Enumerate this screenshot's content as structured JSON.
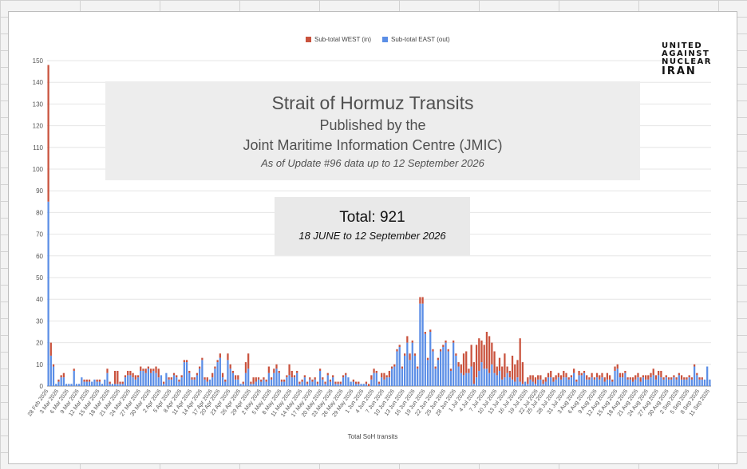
{
  "title_box": {
    "line1": "Strait of Hormuz Transits",
    "line2": "Published by the",
    "line3": "Joint Maritime Information Centre (JMIC)",
    "line4": "As of Update #96 data up to 12 September 2026"
  },
  "total_box": {
    "line1": "Total: 921",
    "line2": "18 JUNE to 12 September 2026"
  },
  "logo": {
    "line1": "UNITED",
    "line2": "AGAINST",
    "line3": "NUCLEAR",
    "line4": "IRAN"
  },
  "colors": {
    "west": "#c9523d",
    "east": "#5b8ee6",
    "axis_text": "#555555",
    "grid": "#e6e6e6"
  },
  "chart_data": {
    "type": "bar",
    "stacked": true,
    "xlabel": "Total SoH transits",
    "ylabel": "",
    "ylim": [
      0,
      150
    ],
    "yticks": [
      0,
      10,
      20,
      30,
      40,
      50,
      60,
      70,
      80,
      90,
      100,
      110,
      120,
      130,
      140,
      150
    ],
    "legend": {
      "placement": "top-center"
    },
    "xtick_labels": [
      "28 Feb 2026",
      "3 Mar 2026",
      "6 Mar 2026",
      "9 Mar 2026",
      "12 Mar 2026",
      "15 Mar 2026",
      "18 Mar 2026",
      "21 Mar 2026",
      "24 Mar 2026",
      "27 Mar 2026",
      "30 Mar 2026",
      "2 Apr 2026",
      "5 Apr 2026",
      "8 Apr 2026",
      "11 Apr 2026",
      "14 Apr 2026",
      "17 Apr 2026",
      "20 Apr 2026",
      "23 Apr 2026",
      "26 Apr 2026",
      "29 Apr 2026",
      "2 May 2026",
      "5 May 2026",
      "8 May 2026",
      "11 May 2026",
      "14 May 2026",
      "17 May 2026",
      "20 May 2026",
      "23 May 2026",
      "26 May 2026",
      "29 May 2026",
      "1 Jun 2026",
      "4 Jun 2026",
      "7 Jun 2026",
      "10 Jun 2026",
      "13 Jun 2026",
      "16 Jun 2026",
      "19 Jun 2026",
      "22 Jun 2026",
      "25 Jun 2026",
      "28 Jun 2026",
      "1 Jul 2026",
      "4 Jul 2026",
      "7 Jul 2026",
      "10 Jul 2026",
      "13 Jul 2026",
      "16 Jul 2026",
      "19 Jul 2026",
      "22 Jul 2026",
      "25 Jul 2026",
      "28 Jul 2026",
      "31 Jul 2026",
      "3 Aug 2026",
      "6 Aug 2026",
      "9 Aug 2026",
      "12 Aug 2026",
      "15 Aug 2026",
      "18 Aug 2026",
      "21 Aug 2026",
      "24 Aug 2026",
      "27 Aug 2026",
      "30 Aug 2026",
      "2 Sep 2026",
      "5 Sep 2026",
      "8 Sep 2026",
      "11 Sep 2026"
    ],
    "series": [
      {
        "name": "Sub-total WEST (in)",
        "values": [
          63,
          6,
          1,
          0,
          1,
          1,
          2,
          0,
          0,
          0,
          1,
          0,
          0,
          0,
          1,
          1,
          1,
          0,
          0,
          1,
          1,
          0,
          0,
          2,
          1,
          0,
          6,
          6,
          1,
          1,
          1,
          2,
          2,
          2,
          2,
          1,
          2,
          1,
          2,
          1,
          2,
          1,
          3,
          4,
          0,
          1,
          0,
          1,
          1,
          1,
          1,
          1,
          1,
          1,
          1,
          1,
          1,
          1,
          1,
          1,
          1,
          1,
          2,
          0,
          2,
          1,
          1,
          2,
          2,
          1,
          3,
          2,
          1,
          2,
          2,
          0,
          1,
          5,
          7,
          1,
          3,
          2,
          1,
          1,
          1,
          1,
          3,
          1,
          2,
          2,
          1,
          1,
          1,
          1,
          5,
          3,
          1,
          1,
          1,
          1,
          1,
          1,
          1,
          1,
          1,
          1,
          1,
          1,
          1,
          1,
          1,
          1,
          1,
          1,
          1,
          1,
          1,
          0,
          0,
          1,
          1,
          1,
          0,
          0,
          1,
          1,
          2,
          2,
          1,
          1,
          2,
          3,
          1,
          3,
          1,
          1,
          1,
          1,
          1,
          1,
          3,
          3,
          1,
          1,
          1,
          3,
          3,
          1,
          1,
          1,
          1,
          1,
          1,
          1,
          1,
          1,
          1,
          1,
          1,
          1,
          2,
          4,
          10,
          10,
          2,
          10,
          10,
          15,
          15,
          10,
          11,
          17,
          17,
          10,
          10,
          4,
          6,
          6,
          11,
          3,
          3,
          11,
          8,
          8,
          20,
          10,
          0,
          3,
          2,
          3,
          3,
          2,
          2,
          2,
          2,
          2,
          3,
          2,
          2,
          2,
          2,
          3,
          2,
          1,
          1,
          2,
          1,
          2,
          1,
          1,
          2,
          1,
          2,
          1,
          2,
          2,
          2,
          2,
          3,
          2,
          1,
          2,
          2,
          2,
          2,
          1,
          1,
          1,
          2,
          2,
          2,
          2,
          1,
          2,
          2,
          2,
          3,
          2,
          2,
          3,
          1,
          1,
          1,
          1,
          1,
          1,
          1,
          2,
          1,
          1,
          1,
          1,
          1,
          1,
          1,
          1,
          0
        ]
      },
      {
        "name": "Sub-total EAST (out)",
        "values": [
          85,
          14,
          9,
          1,
          2,
          4,
          4,
          1,
          1,
          1,
          7,
          1,
          1,
          4,
          2,
          2,
          2,
          2,
          3,
          2,
          2,
          1,
          3,
          6,
          1,
          1,
          1,
          1,
          1,
          1,
          4,
          5,
          5,
          4,
          3,
          4,
          7,
          7,
          6,
          8,
          6,
          7,
          6,
          4,
          5,
          1,
          6,
          3,
          3,
          5,
          4,
          2,
          4,
          11,
          11,
          6,
          3,
          3,
          5,
          8,
          12,
          3,
          2,
          3,
          4,
          8,
          11,
          13,
          4,
          2,
          12,
          8,
          6,
          3,
          3,
          1,
          1,
          6,
          8,
          1,
          1,
          2,
          3,
          2,
          3,
          2,
          6,
          3,
          6,
          8,
          6,
          2,
          2,
          4,
          5,
          4,
          4,
          6,
          1,
          2,
          4,
          1,
          3,
          2,
          3,
          1,
          7,
          3,
          1,
          5,
          2,
          4,
          1,
          1,
          1,
          4,
          5,
          4,
          2,
          2,
          1,
          1,
          1,
          1,
          1,
          0,
          3,
          6,
          6,
          1,
          4,
          3,
          4,
          4,
          8,
          9,
          16,
          18,
          8,
          14,
          20,
          12,
          20,
          14,
          8,
          38,
          38,
          24,
          12,
          25,
          16,
          8,
          12,
          16,
          18,
          20,
          16,
          7,
          20,
          14,
          9,
          6,
          5,
          6,
          6,
          9,
          1,
          4,
          7,
          11,
          8,
          8,
          6,
          10,
          6,
          5,
          7,
          3,
          4,
          6,
          4,
          3,
          2,
          4,
          2,
          1,
          2,
          1,
          3,
          2,
          1,
          3,
          3,
          1,
          2,
          4,
          4,
          2,
          3,
          4,
          3,
          4,
          4,
          3,
          4,
          6,
          2,
          5,
          5,
          6,
          3,
          3,
          4,
          3,
          4,
          3,
          4,
          2,
          3,
          3,
          2,
          7,
          8,
          4,
          4,
          6,
          3,
          3,
          2,
          3,
          4,
          2,
          4,
          3,
          3,
          4,
          5,
          3,
          5,
          4,
          3,
          4,
          3,
          3,
          4,
          3,
          5,
          3,
          3,
          3,
          4,
          3,
          9,
          5,
          3,
          3,
          3,
          9,
          3
        ]
      }
    ]
  }
}
